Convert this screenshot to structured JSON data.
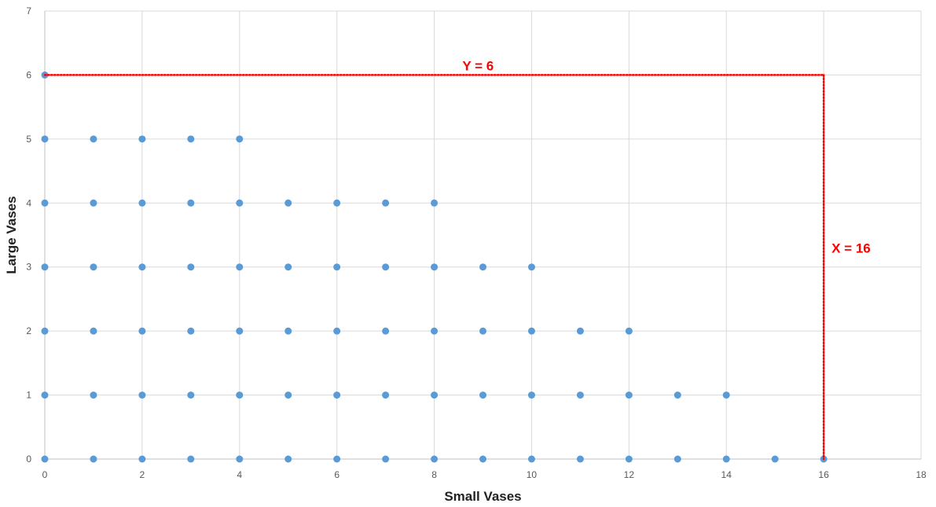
{
  "chart_data": {
    "type": "scatter",
    "title": "",
    "xlabel": "Small Vases",
    "ylabel": "Large Vases",
    "xlim": [
      0,
      18
    ],
    "ylim": [
      0,
      7
    ],
    "x_ticks": [
      0,
      2,
      4,
      6,
      8,
      10,
      12,
      14,
      16,
      18
    ],
    "y_ticks": [
      0,
      1,
      2,
      3,
      4,
      5,
      6,
      7
    ],
    "grid": true,
    "legend": "none",
    "colors": {
      "points": "#5b9bd5",
      "annotation": "#ff0000",
      "grid": "#d9d9d9",
      "axis": "#bfbfbf"
    },
    "series": [
      {
        "points": [
          [
            0,
            6
          ],
          [
            0,
            5
          ],
          [
            1,
            5
          ],
          [
            2,
            5
          ],
          [
            3,
            5
          ],
          [
            4,
            5
          ],
          [
            0,
            4
          ],
          [
            1,
            4
          ],
          [
            2,
            4
          ],
          [
            3,
            4
          ],
          [
            4,
            4
          ],
          [
            5,
            4
          ],
          [
            6,
            4
          ],
          [
            7,
            4
          ],
          [
            8,
            4
          ],
          [
            0,
            3
          ],
          [
            1,
            3
          ],
          [
            2,
            3
          ],
          [
            3,
            3
          ],
          [
            4,
            3
          ],
          [
            5,
            3
          ],
          [
            6,
            3
          ],
          [
            7,
            3
          ],
          [
            8,
            3
          ],
          [
            9,
            3
          ],
          [
            10,
            3
          ],
          [
            0,
            2
          ],
          [
            1,
            2
          ],
          [
            2,
            2
          ],
          [
            3,
            2
          ],
          [
            4,
            2
          ],
          [
            5,
            2
          ],
          [
            6,
            2
          ],
          [
            7,
            2
          ],
          [
            8,
            2
          ],
          [
            9,
            2
          ],
          [
            10,
            2
          ],
          [
            11,
            2
          ],
          [
            12,
            2
          ],
          [
            0,
            1
          ],
          [
            1,
            1
          ],
          [
            2,
            1
          ],
          [
            3,
            1
          ],
          [
            4,
            1
          ],
          [
            5,
            1
          ],
          [
            6,
            1
          ],
          [
            7,
            1
          ],
          [
            8,
            1
          ],
          [
            9,
            1
          ],
          [
            10,
            1
          ],
          [
            11,
            1
          ],
          [
            12,
            1
          ],
          [
            13,
            1
          ],
          [
            14,
            1
          ],
          [
            0,
            0
          ],
          [
            1,
            0
          ],
          [
            2,
            0
          ],
          [
            3,
            0
          ],
          [
            4,
            0
          ],
          [
            5,
            0
          ],
          [
            6,
            0
          ],
          [
            7,
            0
          ],
          [
            8,
            0
          ],
          [
            9,
            0
          ],
          [
            10,
            0
          ],
          [
            11,
            0
          ],
          [
            12,
            0
          ],
          [
            13,
            0
          ],
          [
            14,
            0
          ],
          [
            15,
            0
          ],
          [
            16,
            0
          ]
        ]
      }
    ],
    "annotations": [
      {
        "label": "Y = 6",
        "line": {
          "from": [
            0,
            6
          ],
          "to": [
            16,
            6
          ]
        },
        "label_at": [
          8.9,
          6
        ]
      },
      {
        "label": "X = 16",
        "line": {
          "from": [
            16,
            6
          ],
          "to": [
            16,
            0
          ]
        },
        "label_at": [
          16,
          3.3
        ]
      }
    ]
  }
}
